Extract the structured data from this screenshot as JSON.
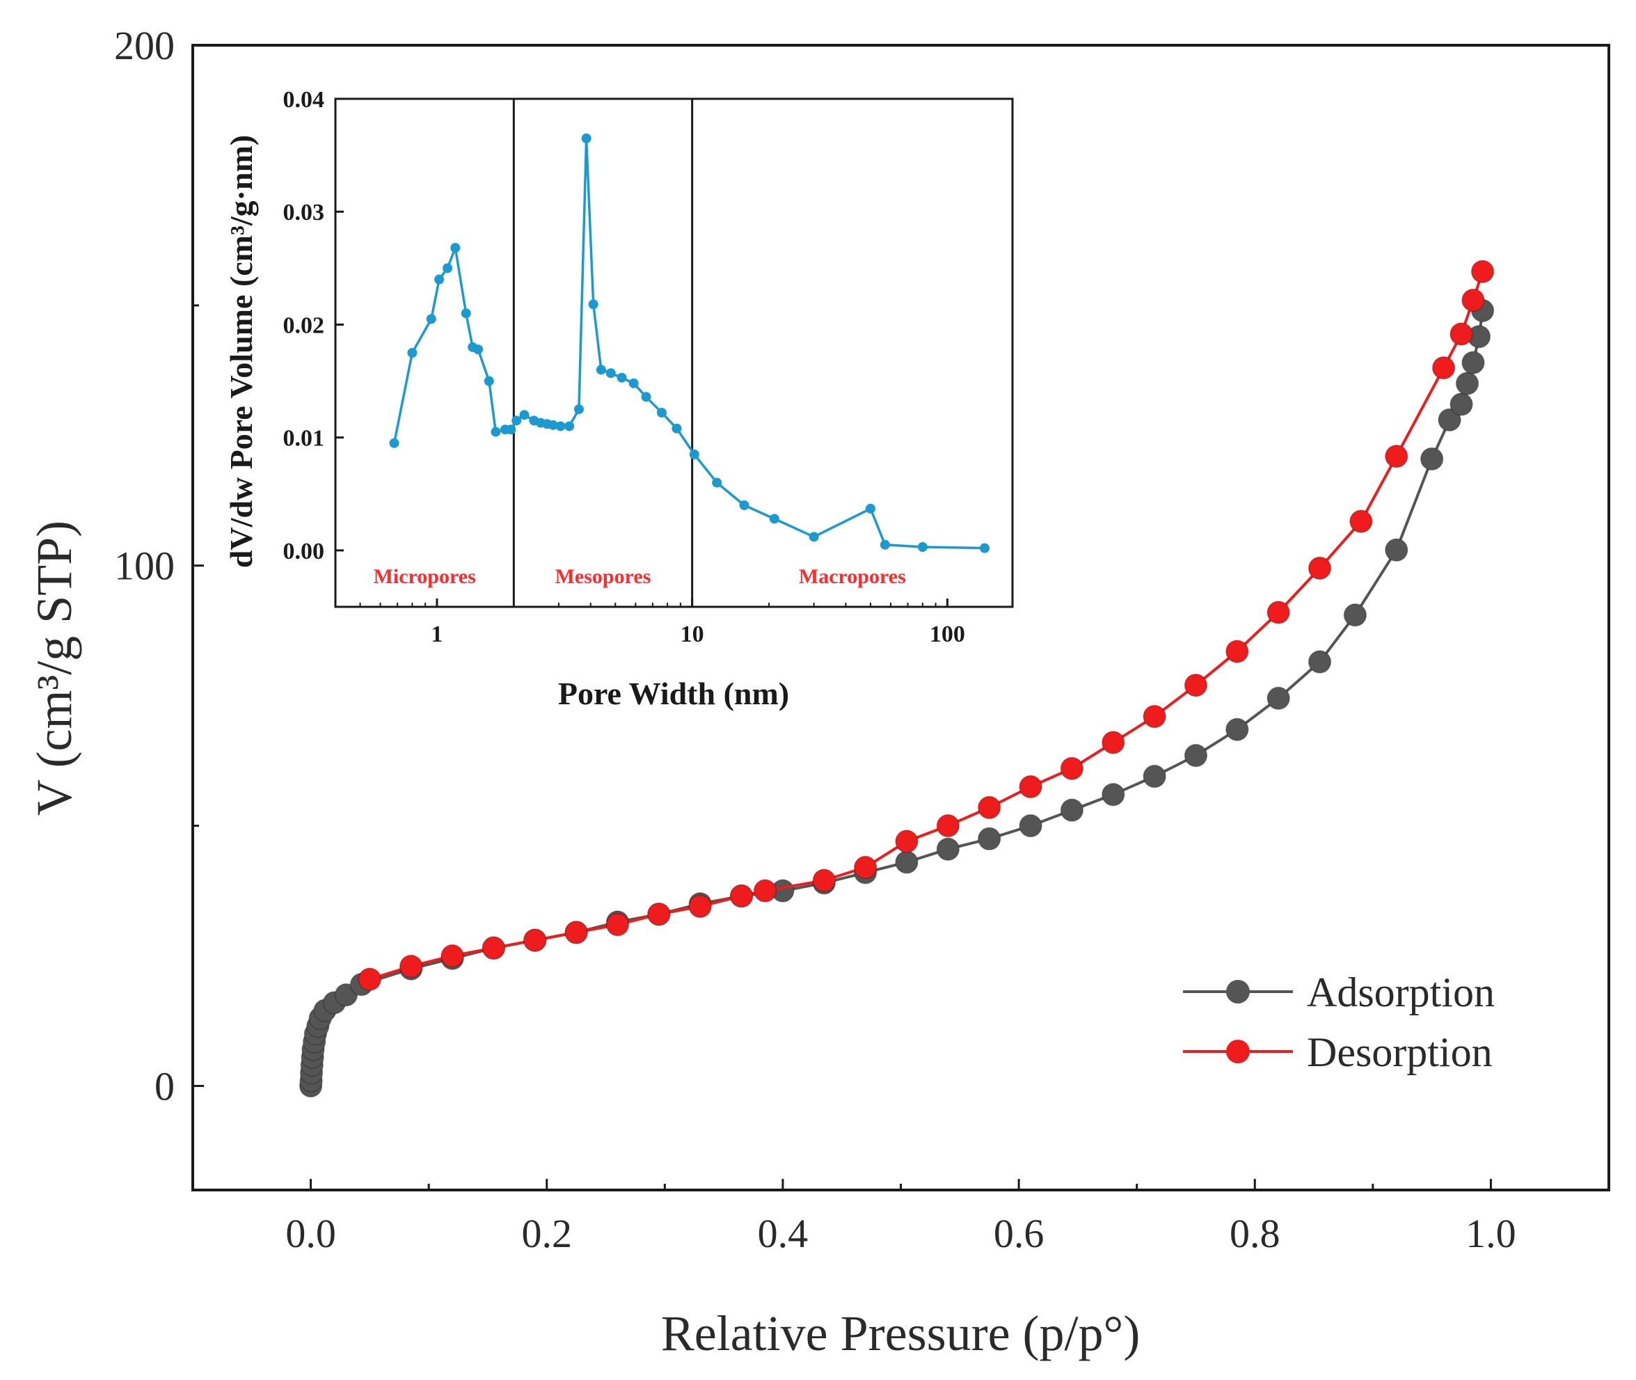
{
  "colors": {
    "adsorption": "#555555",
    "desorption": "#ee1c1c",
    "inset_line": "#1a9ad0",
    "region_label": "#ff2a2a",
    "axis": "#1a1a1a"
  },
  "chart_data": [
    {
      "type": "line",
      "title": "",
      "xlabel": "Relative Pressure (p/p°)",
      "ylabel": "V (cm³/g STP)",
      "xlim": [
        -0.1,
        1.1
      ],
      "ylim": [
        -20,
        200
      ],
      "xticks": [
        0.0,
        0.2,
        0.4,
        0.6,
        0.8,
        1.0
      ],
      "xtick_labels": [
        "0.0",
        "0.2",
        "0.4",
        "0.6",
        "0.8",
        "1.0"
      ],
      "yticks": [
        0,
        100,
        200
      ],
      "ytick_labels": [
        "0",
        "100",
        "200"
      ],
      "legend": {
        "position": "bottom-right",
        "entries": [
          "Adsorption",
          "Desorption"
        ]
      },
      "series": [
        {
          "name": "Adsorption",
          "marker": "circle",
          "x": [
            0.0,
            0.0003,
            0.0006,
            0.001,
            0.0015,
            0.002,
            0.003,
            0.004,
            0.006,
            0.008,
            0.012,
            0.02,
            0.03,
            0.043,
            0.085,
            0.12,
            0.155,
            0.19,
            0.225,
            0.26,
            0.295,
            0.33,
            0.365,
            0.4,
            0.435,
            0.47,
            0.505,
            0.54,
            0.575,
            0.61,
            0.645,
            0.68,
            0.715,
            0.75,
            0.785,
            0.82,
            0.855,
            0.885,
            0.92,
            0.95,
            0.965,
            0.975,
            0.98,
            0.985,
            0.99,
            0.993
          ],
          "y": [
            0,
            1,
            2.5,
            4,
            5.5,
            7,
            8.5,
            10,
            11.5,
            13,
            14.5,
            16,
            17.5,
            19.5,
            22.5,
            24.5,
            26.5,
            28,
            29.5,
            31.5,
            33,
            35,
            36.5,
            37.5,
            39,
            41,
            43,
            45.5,
            47.5,
            50,
            53,
            56,
            59.5,
            63.5,
            68.5,
            74.5,
            81.5,
            90.5,
            103,
            120.5,
            128,
            131,
            135,
            139,
            144,
            149
          ]
        },
        {
          "name": "Desorption",
          "marker": "circle",
          "x": [
            0.993,
            0.985,
            0.975,
            0.96,
            0.92,
            0.89,
            0.855,
            0.82,
            0.785,
            0.75,
            0.715,
            0.68,
            0.645,
            0.61,
            0.575,
            0.54,
            0.505,
            0.47,
            0.435,
            0.385,
            0.365,
            0.33,
            0.295,
            0.26,
            0.225,
            0.19,
            0.155,
            0.12,
            0.085,
            0.05
          ],
          "y": [
            156.5,
            151,
            144.5,
            138,
            121,
            108.5,
            99.5,
            91,
            83.5,
            77,
            71,
            66,
            61,
            57.5,
            53.5,
            50,
            47,
            42,
            39.5,
            37.5,
            36.5,
            34.5,
            33,
            31,
            29.5,
            28,
            26.5,
            25,
            23,
            20.5
          ]
        }
      ]
    },
    {
      "type": "line",
      "title": "",
      "xlabel": "Pore Width (nm)",
      "ylabel": "dV/dw Pore Volume (cm³/g·nm)",
      "xscale": "log",
      "xlim": [
        0.4,
        180
      ],
      "ylim": [
        -0.005,
        0.04
      ],
      "xticks": [
        1,
        10,
        100
      ],
      "xtick_labels": [
        "1",
        "10",
        "100"
      ],
      "yticks": [
        0.0,
        0.01,
        0.02,
        0.03,
        0.04
      ],
      "ytick_labels": [
        "0.00",
        "0.01",
        "0.02",
        "0.03",
        "0.04"
      ],
      "region_boundaries": [
        2,
        10
      ],
      "region_labels": [
        "Micropores",
        "Mesopores",
        "Macropores"
      ],
      "series": [
        {
          "name": "Pore size distribution",
          "marker": "circle",
          "x": [
            0.68,
            0.8,
            0.95,
            1.02,
            1.1,
            1.18,
            1.3,
            1.38,
            1.45,
            1.6,
            1.7,
            1.85,
            1.95,
            2.05,
            2.2,
            2.4,
            2.55,
            2.7,
            2.85,
            3.05,
            3.3,
            3.6,
            3.85,
            4.1,
            4.4,
            4.8,
            5.3,
            5.9,
            6.6,
            7.6,
            8.7,
            10.2,
            12.5,
            16,
            21,
            30,
            50,
            57,
            80,
            140
          ],
          "y": [
            0.0095,
            0.0175,
            0.0205,
            0.024,
            0.025,
            0.0268,
            0.021,
            0.018,
            0.0178,
            0.015,
            0.0105,
            0.0107,
            0.0107,
            0.0115,
            0.012,
            0.0115,
            0.0113,
            0.0112,
            0.0111,
            0.011,
            0.011,
            0.0125,
            0.0365,
            0.0218,
            0.016,
            0.0157,
            0.0153,
            0.0148,
            0.0136,
            0.0122,
            0.0108,
            0.0085,
            0.006,
            0.004,
            0.0028,
            0.0012,
            0.0037,
            0.0005,
            0.0003,
            0.0002
          ]
        }
      ]
    }
  ]
}
